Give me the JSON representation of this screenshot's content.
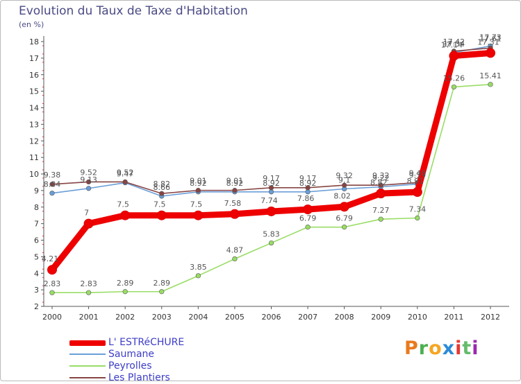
{
  "title": "Evolution du Taux de Taxe d'Habitation",
  "unit_label": "(en %)",
  "logo": {
    "letters": [
      "P",
      "r",
      "o",
      "x",
      "i",
      "t",
      "i"
    ],
    "colors": [
      "#e87a1c",
      "#4caf50",
      "#f5a623",
      "#2b8ad6",
      "#e53935",
      "#66bb6a",
      "#9c27b0"
    ]
  },
  "chart_data": {
    "type": "line",
    "x": [
      "2000",
      "2001",
      "2002",
      "2003",
      "2004",
      "2005",
      "2006",
      "2007",
      "2008",
      "2009",
      "2010",
      "2011",
      "2012"
    ],
    "ylim": [
      2,
      18
    ],
    "yticks": [
      "2",
      "3",
      "4",
      "5",
      "6",
      "7",
      "8",
      "9",
      "10",
      "11",
      "12",
      "13",
      "14",
      "15",
      "16",
      "17",
      "18"
    ],
    "grid": false,
    "legend_position": "bottom-left",
    "series": [
      {
        "name": "L' ESTRéCHURE",
        "color": "#ee0000",
        "values": [
          4.21,
          7,
          7.5,
          7.5,
          7.5,
          7.58,
          7.74,
          7.86,
          8.02,
          8.82,
          8.91,
          17.14,
          17.31
        ],
        "labels": [
          "4.21",
          "7",
          "7.5",
          "7.5",
          "7.5",
          "7.58",
          "7.74",
          "7.86",
          "8.02",
          "8.82",
          "8.91",
          "17.14",
          "17.31"
        ]
      },
      {
        "name": "Saumane",
        "color": "#6a9ed8",
        "values": [
          8.84,
          9.13,
          9.47,
          8.66,
          8.92,
          8.92,
          8.92,
          8.92,
          9.1,
          9.22,
          9.39,
          17.34,
          17.73
        ],
        "labels": [
          "8.84",
          "9.13",
          "9.47",
          "8.66",
          "8.92",
          "8.92",
          "8.92",
          "8.92",
          "9.1",
          "9.22",
          "9.39",
          "17.34",
          "17.73"
        ]
      },
      {
        "name": "Peyrolles",
        "color": "#99dd66",
        "values": [
          2.83,
          2.83,
          2.89,
          2.89,
          3.85,
          4.87,
          5.83,
          6.79,
          6.79,
          7.27,
          7.34,
          15.26,
          15.41
        ],
        "labels": [
          "2.83",
          "2.83",
          "2.89",
          "2.89",
          "3.85",
          "4.87",
          "5.83",
          "6.79",
          "6.79",
          "7.27",
          "7.34",
          "15.26",
          "15.41"
        ]
      },
      {
        "name": "Les Plantiers",
        "color": "#884444",
        "values": [
          9.38,
          9.52,
          9.52,
          8.82,
          9.01,
          9.01,
          9.17,
          9.17,
          9.32,
          9.32,
          9.48,
          17.42,
          17.61
        ],
        "labels": [
          "9.38",
          "9.52",
          "9.52",
          "8.82",
          "9.01",
          "9.01",
          "9.17",
          "9.17",
          "9.32",
          "9.32",
          "9.48",
          "17.42",
          "17.61"
        ]
      }
    ]
  }
}
